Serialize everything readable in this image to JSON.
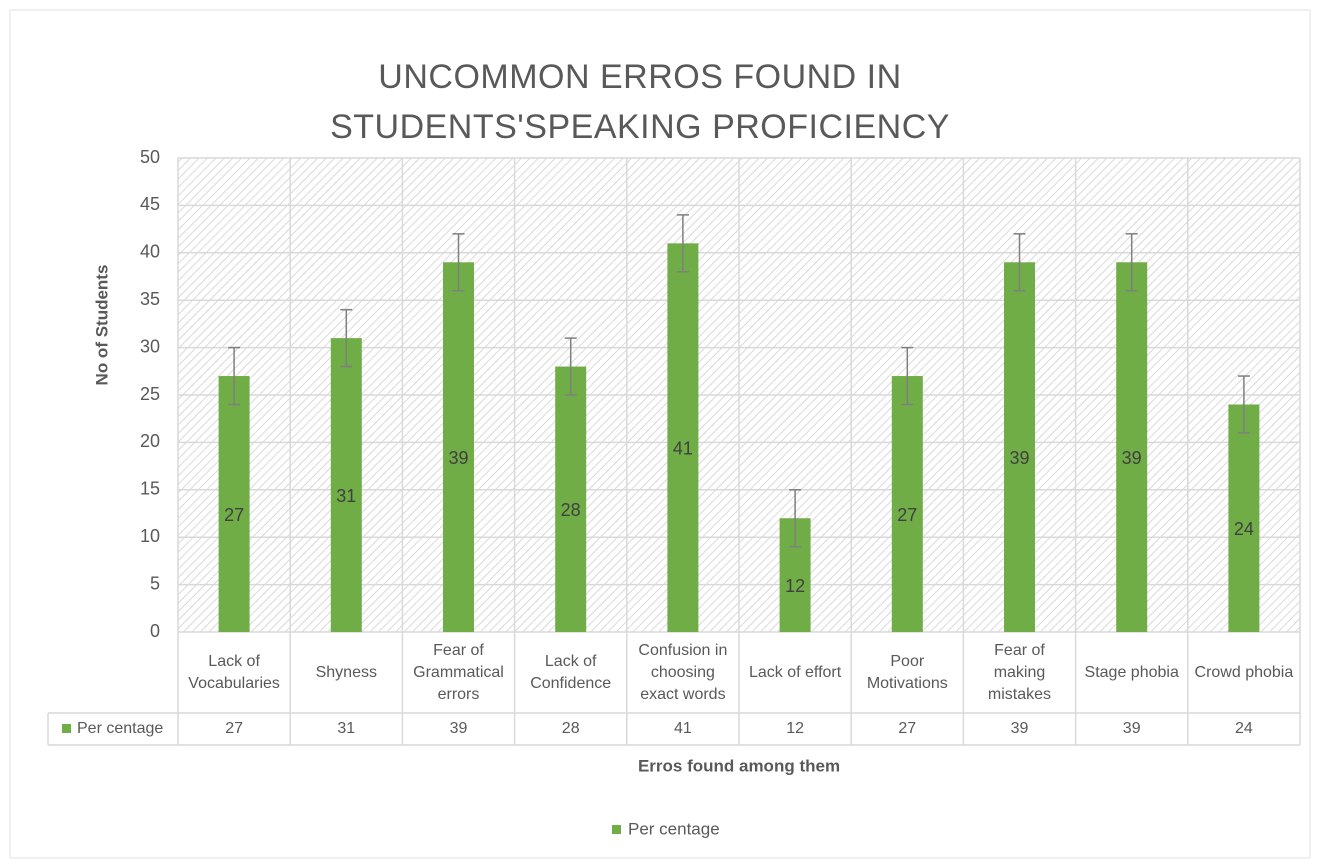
{
  "chart_data": {
    "type": "bar",
    "title": "UNCOMMON ERROS FOUND IN STUDENTS'SPEAKING PROFICIENCY",
    "x_label": "Erros found among them",
    "y_label": "No of Students",
    "categories": [
      "Lack of Vocabularies",
      "Shyness",
      "Fear of Grammatical errors",
      "Lack of Confidence",
      "Confusion in choosing exact words",
      "Lack of effort",
      "Poor Motivations",
      "Fear of making mistakes",
      "Stage phobia",
      "Crowd phobia"
    ],
    "series": [
      {
        "name": "Per centage",
        "color": "#70ad47",
        "values": [
          27,
          31,
          39,
          28,
          41,
          12,
          27,
          39,
          39,
          24
        ],
        "errors": [
          3,
          3,
          3,
          3,
          3,
          3,
          3,
          3,
          3,
          3
        ]
      }
    ],
    "ylim": [
      0,
      50
    ],
    "yticks": [
      0,
      5,
      10,
      15,
      20,
      25,
      30,
      35,
      40,
      45,
      50
    ],
    "grid": true,
    "legend": "bottom",
    "data_table": true
  }
}
